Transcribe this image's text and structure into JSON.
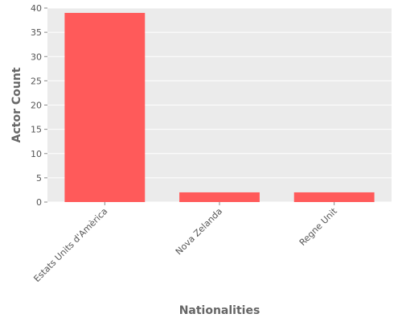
{
  "chart_data": {
    "type": "bar",
    "categories": [
      "Estats Units d'Amèrica",
      "Nova Zelanda",
      "Regne Unit"
    ],
    "values": [
      39,
      2,
      2
    ],
    "xlabel": "Nationalities",
    "ylabel": "Actor Count",
    "ylim": [
      0,
      40
    ],
    "yticks": [
      0,
      5,
      10,
      15,
      20,
      25,
      30,
      35,
      40
    ],
    "grid": true,
    "legend": "none",
    "bar_color": "#ff5a5a",
    "panel_color": "#ebebeb",
    "grid_color": "#ffffff"
  }
}
